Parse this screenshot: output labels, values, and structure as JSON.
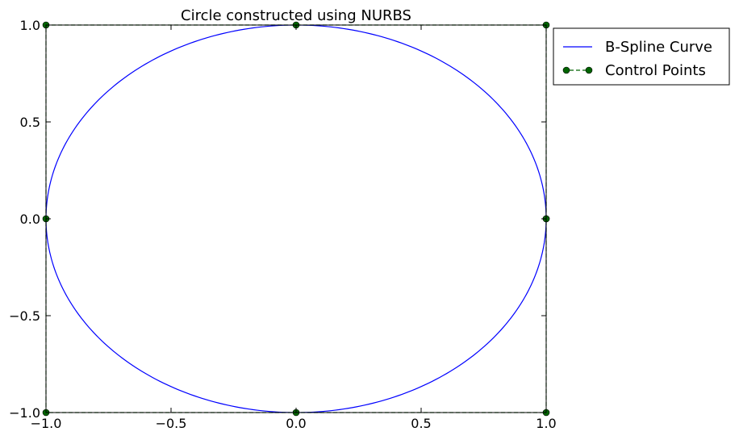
{
  "chart_data": {
    "type": "line",
    "title": "Circle constructed using NURBS",
    "xlabel": "",
    "ylabel": "",
    "xlim": [
      -1.0,
      1.0
    ],
    "ylim": [
      -1.0,
      1.0
    ],
    "x_ticks": [
      {
        "value": -1.0,
        "label": "−1.0"
      },
      {
        "value": -0.5,
        "label": "−0.5"
      },
      {
        "value": 0.0,
        "label": "0.0"
      },
      {
        "value": 0.5,
        "label": "0.5"
      },
      {
        "value": 1.0,
        "label": "1.0"
      }
    ],
    "y_ticks": [
      {
        "value": -1.0,
        "label": "−1.0"
      },
      {
        "value": -0.5,
        "label": "−0.5"
      },
      {
        "value": 0.0,
        "label": "0.0"
      },
      {
        "value": 0.5,
        "label": "0.5"
      },
      {
        "value": 1.0,
        "label": "1.0"
      }
    ],
    "grid": false,
    "legend_position": "outside-top-right",
    "series": [
      {
        "name": "B-Spline Curve",
        "kind": "circle-curve",
        "center": [
          0,
          0
        ],
        "radius": 1,
        "color": "#0000ff"
      },
      {
        "name": "Control Points",
        "kind": "markers-dashed",
        "color": "#006400",
        "x": [
          1,
          1,
          0,
          -1,
          -1,
          -1,
          0,
          1,
          1
        ],
        "y": [
          0,
          1,
          1,
          1,
          0,
          -1,
          -1,
          -1,
          0
        ]
      }
    ]
  }
}
